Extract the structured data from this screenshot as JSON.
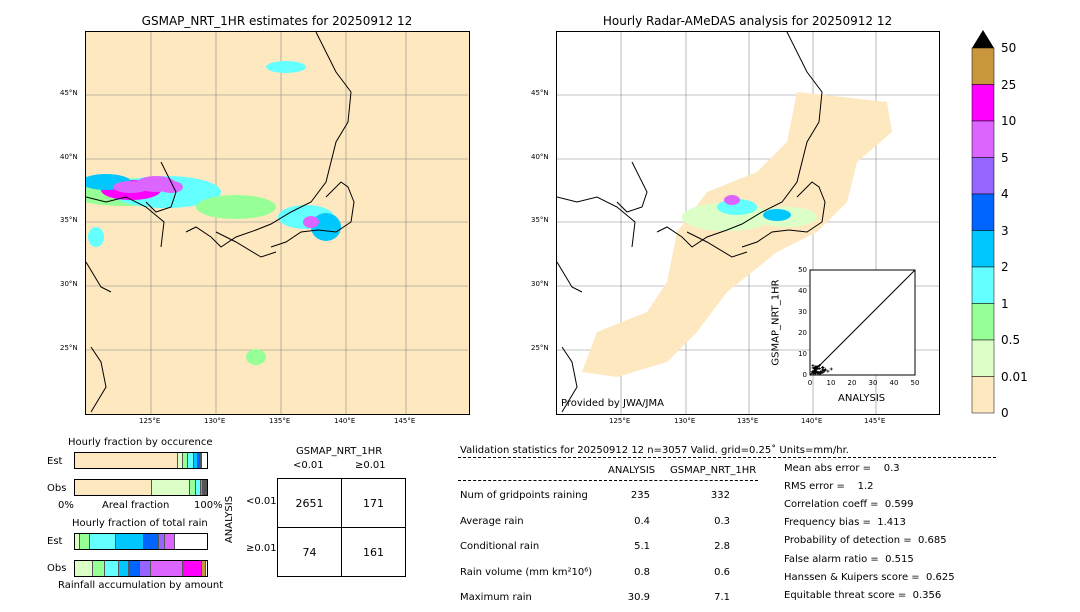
{
  "left_map": {
    "title": "GSMAP_NRT_1HR estimates for 20250912 12",
    "lat_ticks": [
      "45°N",
      "40°N",
      "35°N",
      "30°N",
      "25°N"
    ],
    "lon_ticks": [
      "125°E",
      "130°E",
      "135°E",
      "140°E",
      "145°E"
    ]
  },
  "right_map": {
    "title": "Hourly Radar-AMeDAS analysis for 20250912 12",
    "lat_ticks": [
      "45°N",
      "40°N",
      "35°N",
      "30°N",
      "25°N"
    ],
    "lon_ticks": [
      "125°E",
      "130°E",
      "135°E",
      "140°E",
      "145°E"
    ],
    "credit": "Provided by JWA/JMA"
  },
  "scatter": {
    "ylabel": "GSMAP_NRT_1HR",
    "xlabel": "ANALYSIS",
    "ticks": [
      "0",
      "10",
      "20",
      "30",
      "40",
      "50"
    ]
  },
  "colorbar": {
    "labels": [
      "50",
      "25",
      "10",
      "5",
      "4",
      "3",
      "2",
      "1",
      "0.5",
      "0.01",
      "0"
    ],
    "colors": [
      "#c8963c",
      "#ff00ff",
      "#dc64ff",
      "#9664ff",
      "#0064ff",
      "#00c8ff",
      "#64ffff",
      "#96ff96",
      "#dcffc8",
      "#fee8c0"
    ]
  },
  "occurrence": {
    "title": "Hourly fraction by occurence",
    "est_label": "Est",
    "obs_label": "Obs",
    "axis_left": "0%",
    "axis_mid": "Areal fraction",
    "axis_right": "100%",
    "est": [
      78,
      4,
      3.5,
      4.5,
      3,
      1.5,
      0.8,
      0.5
    ],
    "obs": [
      58.5,
      29,
      4.5,
      3.5,
      1.5,
      1.2,
      1,
      0.8
    ]
  },
  "total_rain": {
    "title": "Hourly fraction of total rain",
    "est_label": "Est",
    "obs_label": "Obs",
    "xlabel": "Rainfall accumulation by amount",
    "est": [
      3.5,
      8,
      19.5,
      21,
      12,
      4.5,
      7
    ],
    "obs": [
      13.5,
      9,
      10.5,
      8,
      8.5,
      8,
      24,
      15,
      2.5
    ]
  },
  "contingency": {
    "title": "GSMAP_NRT_1HR",
    "col_headers": [
      "<0.01",
      "≥0.01"
    ],
    "row_title": "ANALYSIS",
    "row_headers": [
      "<0.01",
      "≥0.01"
    ],
    "cells": [
      [
        "2651",
        "171"
      ],
      [
        "74",
        "161"
      ]
    ]
  },
  "stats": {
    "header": "Validation statistics for 20250912 12  n=3057 Valid. grid=0.25˚ Units=mm/hr.",
    "col_analysis": "ANALYSIS",
    "col_gsmap": "GSMAP_NRT_1HR",
    "rows": [
      {
        "label": "Num of gridpoints raining",
        "a": "235",
        "g": "332"
      },
      {
        "label": "Average rain",
        "a": "0.4",
        "g": "0.3"
      },
      {
        "label": "Conditional rain",
        "a": "5.1",
        "g": "2.8"
      },
      {
        "label": "Rain volume (mm km²10⁶)",
        "a": "0.8",
        "g": "0.6"
      },
      {
        "label": "Maximum rain",
        "a": "30.9",
        "g": "7.1"
      }
    ],
    "scores": [
      "Mean abs error =    0.3",
      "RMS error =    1.2",
      "Correlation coeff =  0.599",
      "Frequency bias =  1.413",
      "Probability of detection =  0.685",
      "False alarm ratio =  0.515",
      "Hanssen & Kuipers score =  0.625",
      "Equitable threat score =  0.356"
    ]
  }
}
